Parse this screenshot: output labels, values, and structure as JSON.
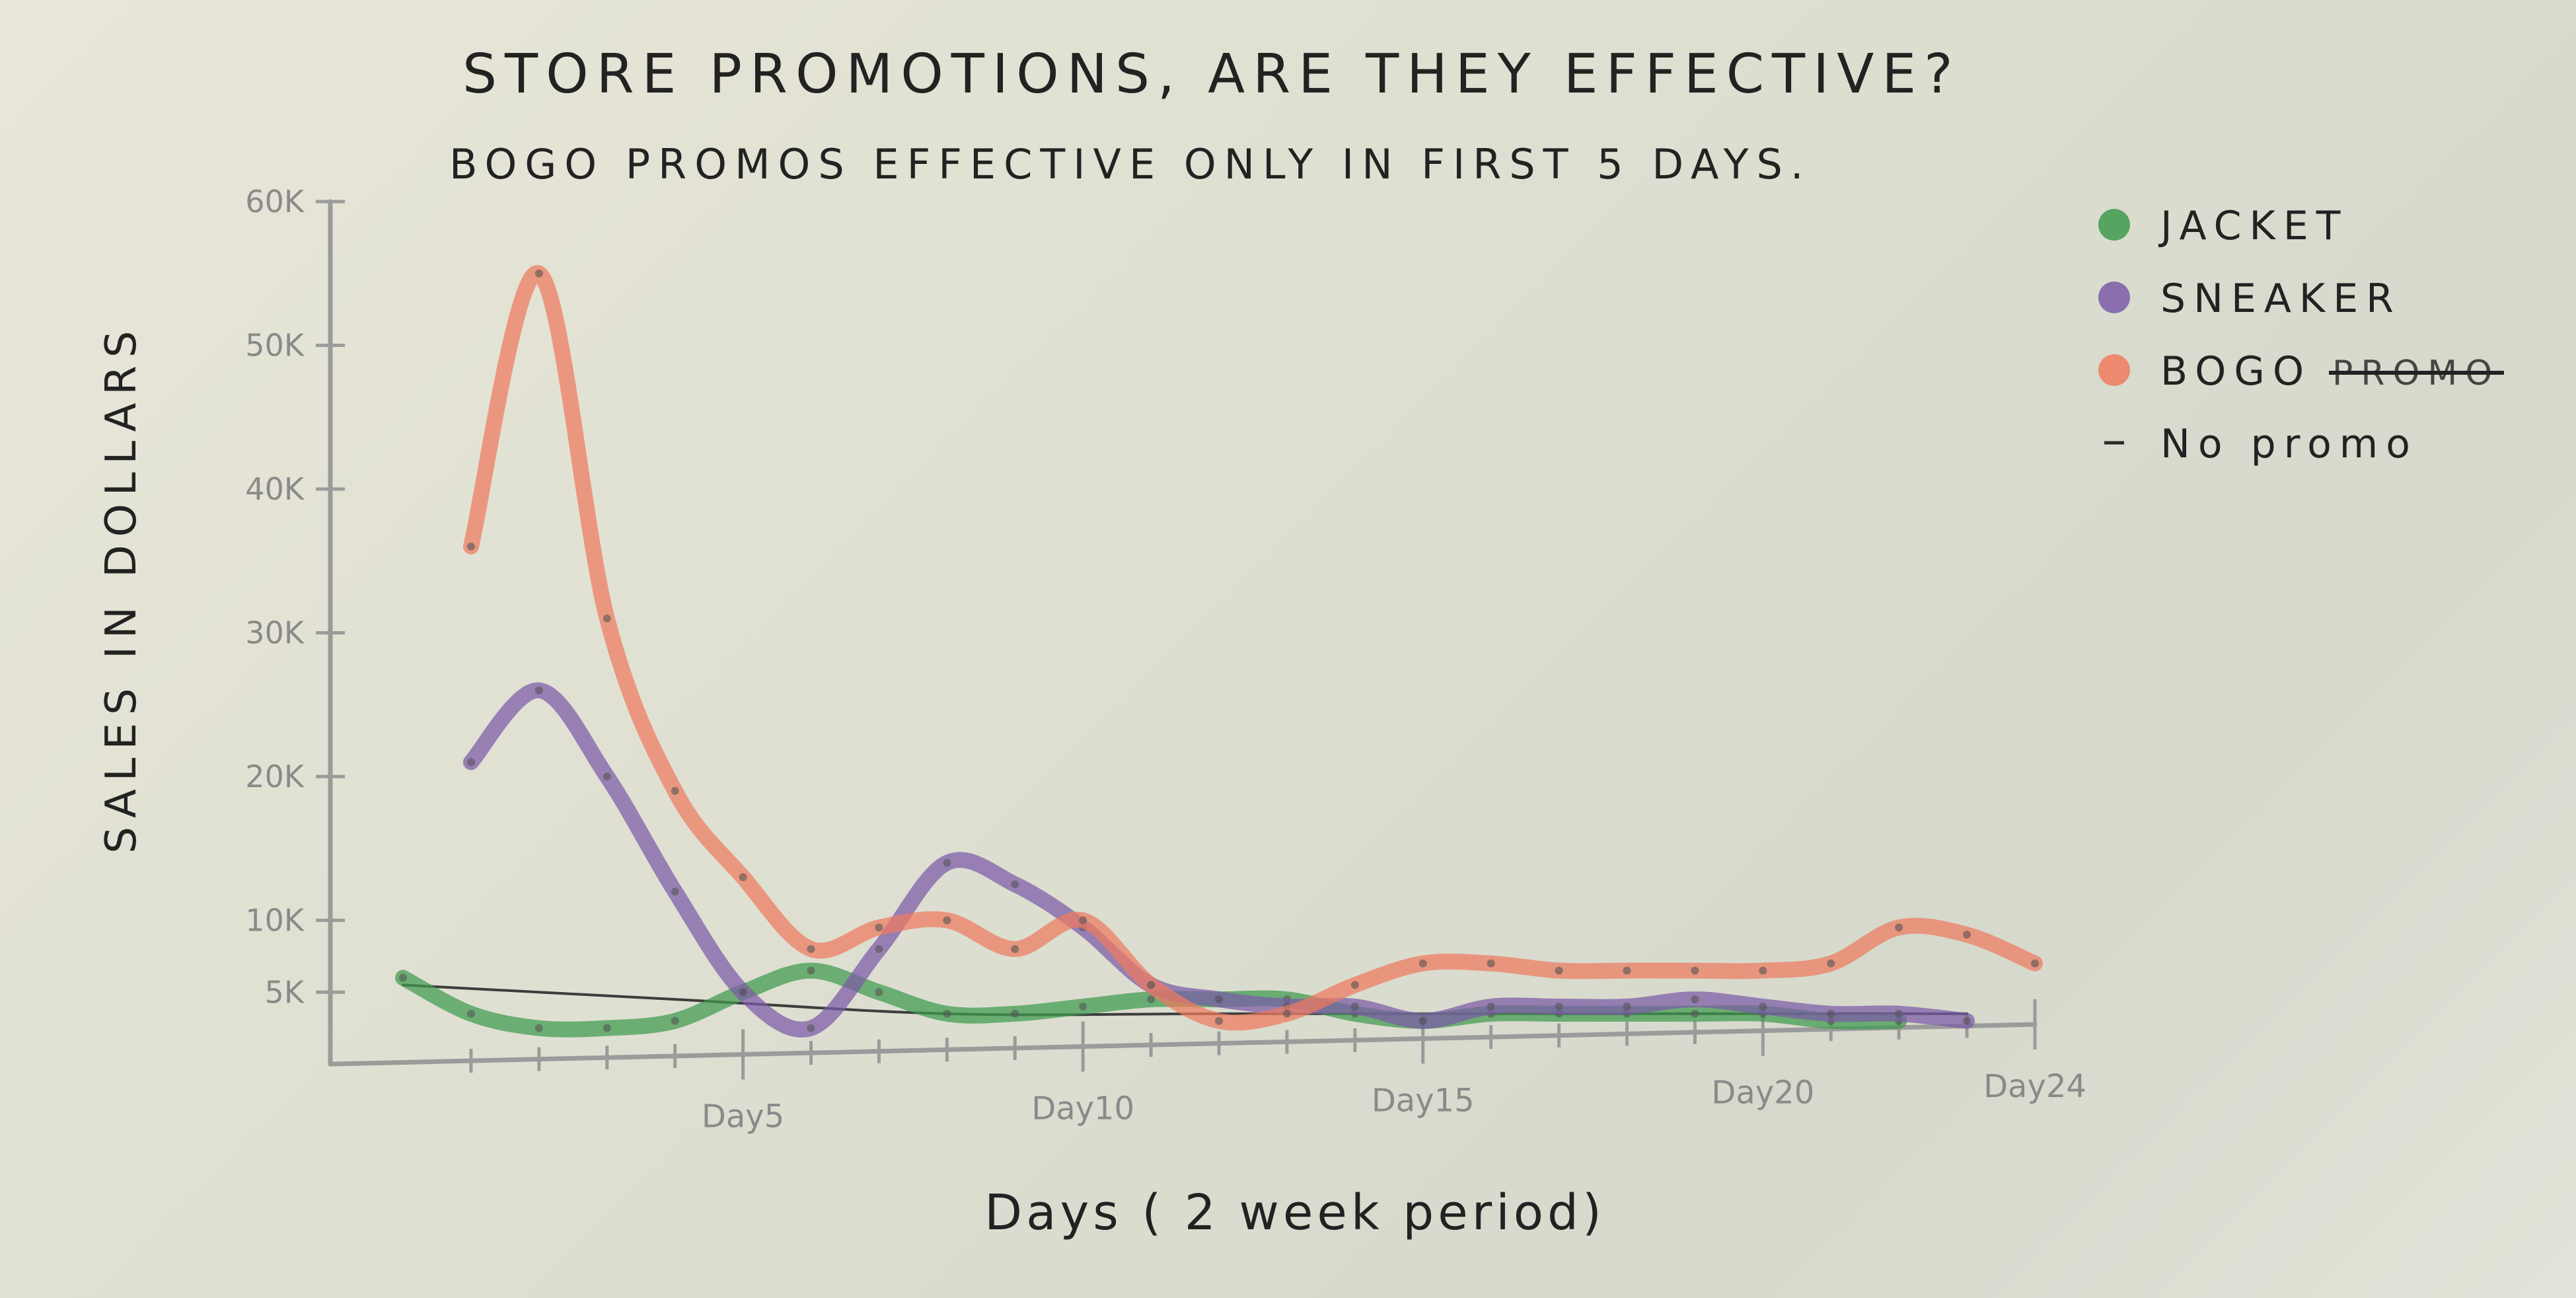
{
  "chart_data": {
    "type": "line",
    "title": "STORE PROMOTIONS, ARE THEY EFFECTIVE?",
    "subtitle": "BOGO PROMOS EFFECTIVE ONLY IN FIRST 5 DAYS.",
    "xlabel": "Days ( 2 week period)",
    "ylabel": "SALES IN DOLLARS",
    "xlim": [
      0,
      24
    ],
    "ylim": [
      0,
      60000
    ],
    "x_ticks": [
      {
        "value": 5,
        "label": "Day5"
      },
      {
        "value": 10,
        "label": "Day10"
      },
      {
        "value": 15,
        "label": "Day15"
      },
      {
        "value": 20,
        "label": "Day20"
      },
      {
        "value": 24,
        "label": "Day24"
      }
    ],
    "y_ticks": [
      {
        "value": 5000,
        "label": "5K"
      },
      {
        "value": 10000,
        "label": "10K"
      },
      {
        "value": 20000,
        "label": "20K"
      },
      {
        "value": 30000,
        "label": "30K"
      },
      {
        "value": 40000,
        "label": "40K"
      },
      {
        "value": 50000,
        "label": "50K"
      },
      {
        "value": 60000,
        "label": "60K"
      }
    ],
    "legend_position": "right",
    "series": [
      {
        "name": "JACKET",
        "color": "#3f9a4e",
        "x": [
          0,
          1,
          2,
          3,
          4,
          5,
          6,
          7,
          8,
          9,
          10,
          11,
          12,
          13,
          14,
          15,
          16,
          17,
          18,
          19,
          20,
          21,
          22
        ],
        "y": [
          6000,
          3500,
          2500,
          2500,
          3000,
          5000,
          6500,
          5000,
          3500,
          3500,
          4000,
          4500,
          4500,
          4500,
          3500,
          3000,
          3500,
          3500,
          3500,
          3500,
          3500,
          3000,
          3000
        ]
      },
      {
        "name": "SNEAKER",
        "color": "#7b5aa8",
        "x": [
          1,
          2,
          3,
          4,
          5,
          6,
          7,
          8,
          9,
          10,
          11,
          12,
          13,
          14,
          15,
          16,
          17,
          18,
          19,
          20,
          21,
          22,
          23
        ],
        "y": [
          21000,
          26000,
          20000,
          12000,
          5000,
          2500,
          8000,
          14000,
          12500,
          9500,
          5500,
          4500,
          4000,
          4000,
          3000,
          4000,
          4000,
          4000,
          4500,
          4000,
          3500,
          3500,
          3000
        ]
      },
      {
        "name": "BOGO",
        "color": "#ef7a5e",
        "x": [
          1,
          2,
          3,
          4,
          5,
          6,
          7,
          8,
          9,
          10,
          11,
          12,
          13,
          14,
          15,
          16,
          17,
          18,
          19,
          20,
          21,
          22,
          23,
          24
        ],
        "y": [
          36000,
          55000,
          31000,
          19000,
          13000,
          8000,
          9500,
          10000,
          8000,
          10000,
          5500,
          3000,
          3500,
          5500,
          7000,
          7000,
          6500,
          6500,
          6500,
          6500,
          7000,
          9500,
          9000,
          7000
        ]
      },
      {
        "name": "No promo",
        "color": "#2b2b2b",
        "x": [
          0,
          4,
          8,
          12,
          16,
          20,
          23
        ],
        "y": [
          5500,
          4500,
          3500,
          3500,
          3500,
          3500,
          3500
        ]
      }
    ],
    "legend": [
      {
        "label": "JACKET",
        "color": "#3f9a4e",
        "marker": "dot"
      },
      {
        "label": "SNEAKER",
        "color": "#7b5aa8",
        "marker": "dot"
      },
      {
        "label": "BOGO",
        "extra": "PROMO",
        "color": "#ef7a5e",
        "marker": "dot"
      },
      {
        "label": "No promo",
        "color": "#2b2b2b",
        "marker": "dash"
      }
    ]
  }
}
